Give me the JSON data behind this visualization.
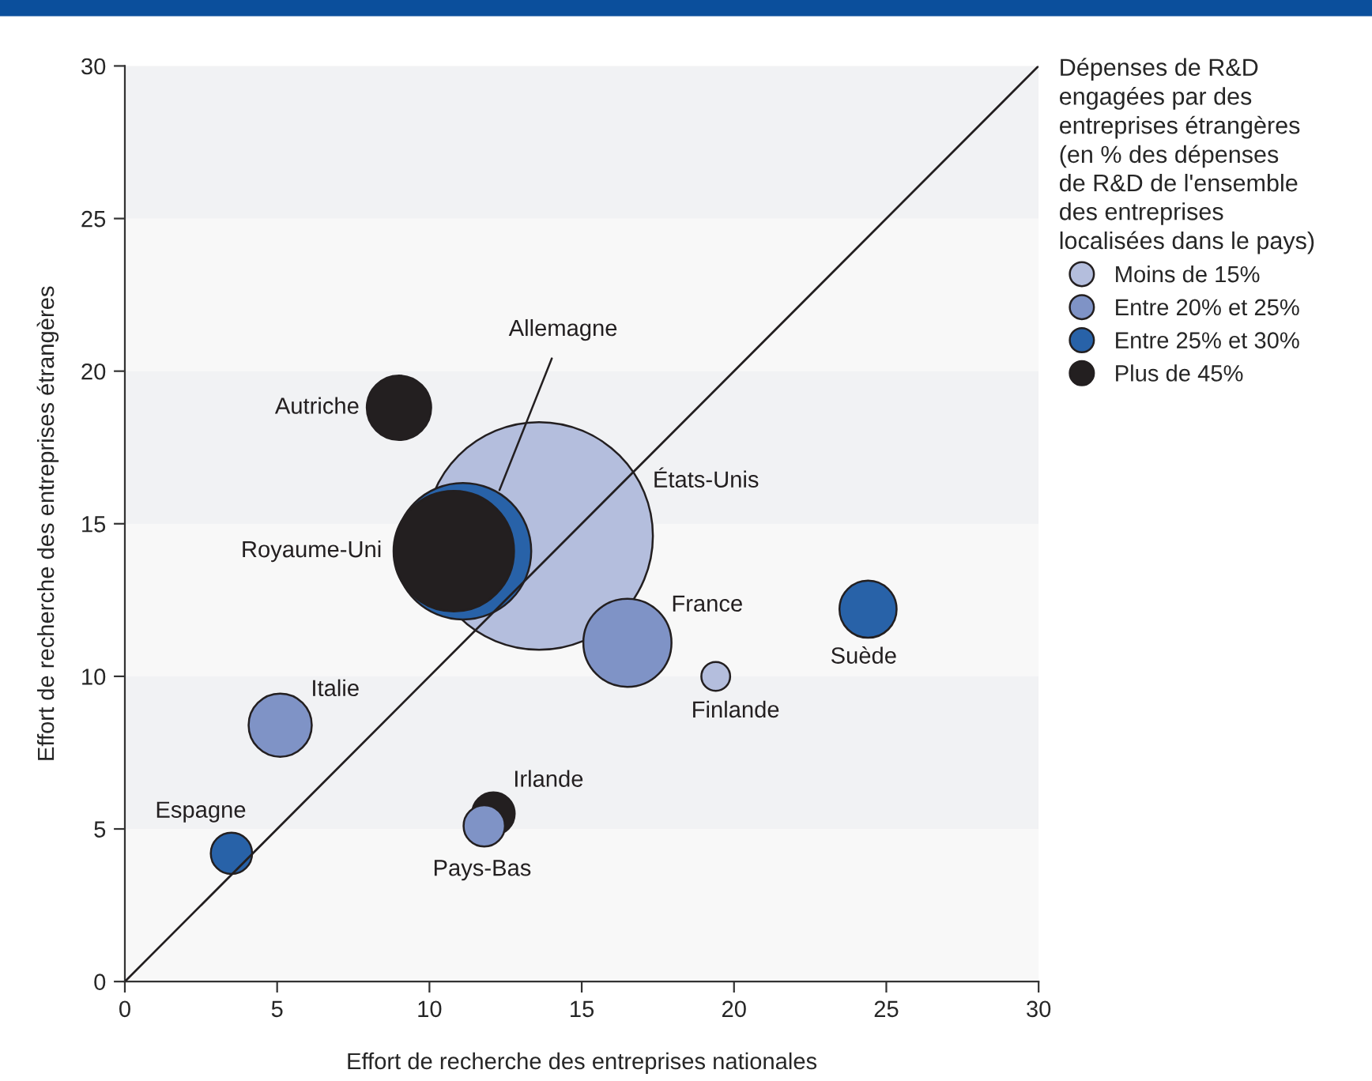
{
  "chart_data": {
    "type": "bubble",
    "xlabel": "Effort de recherche des entreprises nationales",
    "ylabel": "Effort de recherche des entreprises étrangères",
    "legend_title": "Dépenses de R&D\nengagées par des\nentreprises étrangères\n(en % des dépenses\nde R&D de l'ensemble\ndes entreprises\nlocalisées dans le pays)",
    "legend": "right",
    "grid": false,
    "xlim": [
      0,
      30
    ],
    "ylim": [
      0,
      30
    ],
    "xticks": [
      0,
      5,
      10,
      15,
      20,
      25,
      30
    ],
    "yticks": [
      0,
      5,
      10,
      15,
      20,
      25,
      30
    ],
    "series": [
      {
        "name": "Moins de 15%",
        "color": "#b4bedd",
        "x": [
          13.6,
          19.4
        ],
        "values": [
          14.6,
          10.0
        ],
        "sizes": [
          1,
          0.016
        ]
      },
      {
        "name": "Entre 20% et 25%",
        "color": "#7f93c6",
        "x": [
          16.5,
          5.1,
          11.8
        ],
        "values": [
          11.1,
          8.4,
          5.1
        ],
        "sizes": [
          0.15,
          0.077,
          0.033
        ]
      },
      {
        "name": "Entre 25% et 30%",
        "color": "#2862a8",
        "x": [
          11.1,
          24.4,
          3.5
        ],
        "values": [
          14.1,
          12.2,
          4.2
        ],
        "sizes": [
          0.36,
          0.063,
          0.033
        ]
      },
      {
        "name": "Plus de 45%",
        "color": "#231f20",
        "x": [
          10.8,
          9.0,
          12.1
        ],
        "values": [
          14.1,
          18.8,
          5.5
        ],
        "sizes": [
          0.28,
          0.08,
          0.035
        ]
      },
      {
        "type": "line",
        "color": "#231f20",
        "x": [
          0,
          30
        ],
        "values": [
          0,
          30
        ]
      }
    ],
    "bands": [
      {
        "axis": "y",
        "from": 5,
        "to": 10,
        "color": "#f1f2f4"
      },
      {
        "axis": "y",
        "from": 15,
        "to": 20,
        "color": "#f1f2f4"
      },
      {
        "axis": "y",
        "from": 25,
        "to": 30,
        "color": "#f1f2f4"
      }
    ],
    "annotations": [
      {
        "text": "Autriche",
        "x": 9.0,
        "y": 18.8
      },
      {
        "text": "Allemagne",
        "x": 12.3,
        "y": 16.1
      },
      {
        "text": "États-Unis",
        "x": 16.9,
        "y": 16.1
      },
      {
        "text": "Royaume-Uni",
        "x": 8.8,
        "y": 14.1
      },
      {
        "text": "France",
        "x": 16.5,
        "y": 11.1
      },
      {
        "text": "Finlande",
        "x": 19.4,
        "y": 10.0
      },
      {
        "text": "Suède",
        "x": 24.4,
        "y": 12.2
      },
      {
        "text": "Italie",
        "x": 5.1,
        "y": 8.4
      },
      {
        "text": "Espagne",
        "x": 3.5,
        "y": 4.2
      },
      {
        "text": "Irlande",
        "x": 12.1,
        "y": 5.5
      },
      {
        "text": "Pays-Bas",
        "x": 11.8,
        "y": 5.1
      }
    ]
  }
}
